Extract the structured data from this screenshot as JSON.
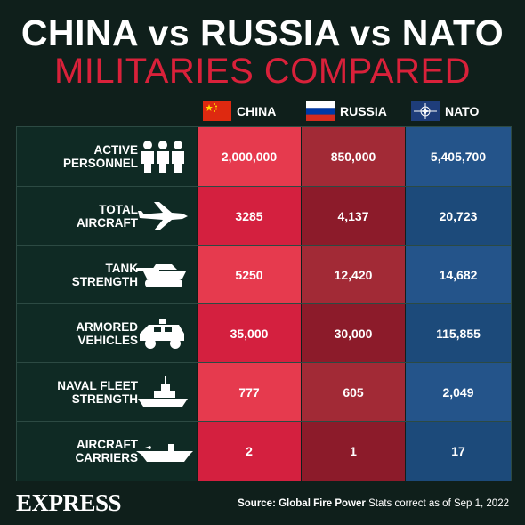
{
  "title": "CHINA vs RUSSIA vs NATO",
  "subtitle": "MILITARIES COMPARED",
  "columns": [
    {
      "name": "CHINA",
      "flag": "china-flag-icon"
    },
    {
      "name": "RUSSIA",
      "flag": "russia-flag-icon"
    },
    {
      "name": "NATO",
      "flag": "nato-flag-icon"
    }
  ],
  "colors": {
    "china_dark": "#d4203f",
    "china_light": "#e63a4e",
    "russia_dark": "#8c1b2a",
    "russia_light": "#a22a36",
    "nato_dark": "#1c4a7a",
    "nato_light": "#24548a",
    "label_bg": "#0f2a24",
    "title_accent": "#d9213a"
  },
  "rows": [
    {
      "label_line1": "ACTIVE",
      "label_line2": "PERSONNEL",
      "icon": "people-icon",
      "china": "2,000,000",
      "russia": "850,000",
      "nato": "5,405,700"
    },
    {
      "label_line1": "TOTAL",
      "label_line2": "AIRCRAFT",
      "icon": "fighter-jet-icon",
      "china": "3285",
      "russia": "4,137",
      "nato": "20,723"
    },
    {
      "label_line1": "TANK",
      "label_line2": "STRENGTH",
      "icon": "tank-icon",
      "china": "5250",
      "russia": "12,420",
      "nato": "14,682"
    },
    {
      "label_line1": "ARMORED",
      "label_line2": "VEHICLES",
      "icon": "armored-vehicle-icon",
      "china": "35,000",
      "russia": "30,000",
      "nato": "115,855"
    },
    {
      "label_line1": "NAVAL FLEET",
      "label_line2": "STRENGTH",
      "icon": "warship-icon",
      "china": "777",
      "russia": "605",
      "nato": "2,049"
    },
    {
      "label_line1": "AIRCRAFT",
      "label_line2": "CARRIERS",
      "icon": "aircraft-carrier-icon",
      "china": "2",
      "russia": "1",
      "nato": "17"
    }
  ],
  "footer": {
    "brand": "EXPRESS",
    "source_label": "Source: Global Fire Power",
    "source_note": "Stats correct as of Sep 1, 2022"
  }
}
